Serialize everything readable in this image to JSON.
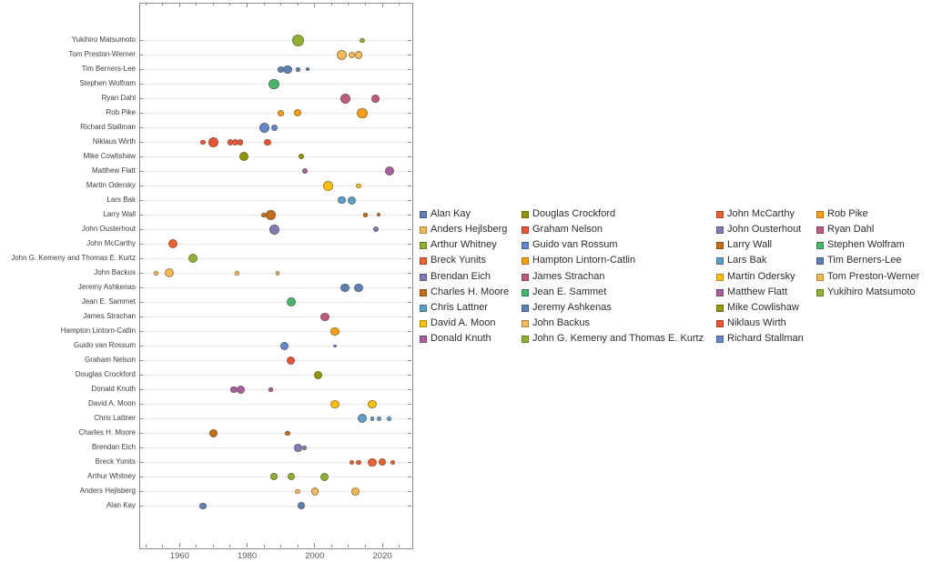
{
  "chart_data": {
    "type": "scatter",
    "subtype": "bubble-timeline",
    "title": "",
    "xlabel": "",
    "ylabel": "",
    "grid": "horizontal-only",
    "legend_position": "right-of-plot",
    "x_axis": {
      "major_ticks": [
        1960,
        1980,
        2000,
        2020
      ],
      "minor_tick_step_years": 5,
      "visible_year_range": [
        1948,
        2029
      ]
    },
    "bubble_format": "[year, radius_px]",
    "series": [
      {
        "name": "Yukihiro Matsumoto",
        "color": "#8fb032",
        "bubbles": [
          [
            1995,
            6.7
          ],
          [
            2014,
            2.8
          ]
        ]
      },
      {
        "name": "Tom Preston-Werner",
        "color": "#f3ba5a",
        "bubbles": [
          [
            2008,
            5.8
          ],
          [
            2011,
            3.5
          ],
          [
            2013,
            4.3
          ]
        ]
      },
      {
        "name": "Tim Berners-Lee",
        "color": "#5e81b5",
        "bubbles": [
          [
            1990,
            3.3
          ],
          [
            1992,
            4.7
          ],
          [
            1995,
            2.3
          ],
          [
            1998,
            1.9
          ]
        ]
      },
      {
        "name": "Stephen Wolfram",
        "color": "#47b66d",
        "bubbles": [
          [
            1988,
            5.8
          ]
        ]
      },
      {
        "name": "Ryan Dahl",
        "color": "#bc5b80",
        "bubbles": [
          [
            2009,
            5.5
          ],
          [
            2018,
            4.3
          ]
        ]
      },
      {
        "name": "Rob Pike",
        "color": "#f89f13",
        "bubbles": [
          [
            1990,
            3.3
          ],
          [
            1995,
            4.2
          ],
          [
            2014,
            5.8
          ]
        ]
      },
      {
        "name": "Richard Stallman",
        "color": "#6487cd",
        "bubbles": [
          [
            1985,
            5.5
          ],
          [
            1988,
            3.7
          ]
        ]
      },
      {
        "name": "Niklaus Wirth",
        "color": "#e95536",
        "bubbles": [
          [
            1967,
            2.8
          ],
          [
            1970,
            5.3
          ],
          [
            1975,
            3.3
          ],
          [
            1976.5,
            3.3
          ],
          [
            1978,
            3.3
          ],
          [
            1986,
            3.7
          ]
        ]
      },
      {
        "name": "Mike Cowlishaw",
        "color": "#929600",
        "bubbles": [
          [
            1979,
            5.2
          ],
          [
            1996,
            3.0
          ]
        ]
      },
      {
        "name": "Matthew Flatt",
        "color": "#a5609d",
        "bubbles": [
          [
            1997,
            3.0
          ],
          [
            2022,
            5.0
          ]
        ]
      },
      {
        "name": "Martin Odersky",
        "color": "#fdbf10",
        "bubbles": [
          [
            2004,
            5.3
          ],
          [
            2013,
            2.8
          ]
        ]
      },
      {
        "name": "Lars Bak",
        "color": "#5d9ec7",
        "bubbles": [
          [
            2008,
            4.2
          ],
          [
            2011,
            4.5
          ]
        ]
      },
      {
        "name": "Larry Wall",
        "color": "#c56e1a",
        "bubbles": [
          [
            1985,
            2.8
          ],
          [
            1987,
            5.3
          ],
          [
            2015,
            2.3
          ],
          [
            2019,
            2.0
          ]
        ]
      },
      {
        "name": "John Ousterhout",
        "color": "#8778b3",
        "bubbles": [
          [
            1988,
            5.3
          ],
          [
            2018,
            3.0
          ]
        ]
      },
      {
        "name": "John McCarthy",
        "color": "#eb6235",
        "bubbles": [
          [
            1958,
            5.2
          ]
        ]
      },
      {
        "name": "John G. Kemeny and Thomas E. Kurtz",
        "color": "#8fb032",
        "bubbles": [
          [
            1964,
            5.2
          ]
        ]
      },
      {
        "name": "John Backus",
        "color": "#f3ba5a",
        "bubbles": [
          [
            1953,
            2.3
          ],
          [
            1957,
            5.0
          ],
          [
            1977,
            2.3
          ],
          [
            1989,
            2.3
          ]
        ]
      },
      {
        "name": "Jeremy Ashkenas",
        "color": "#5e81b5",
        "bubbles": [
          [
            2009,
            4.8
          ],
          [
            2013,
            4.8
          ]
        ]
      },
      {
        "name": "Jean E. Sammet",
        "color": "#47b66d",
        "bubbles": [
          [
            1993,
            5.0
          ]
        ]
      },
      {
        "name": "James Strachan",
        "color": "#bc5b80",
        "bubbles": [
          [
            2003,
            4.8
          ]
        ]
      },
      {
        "name": "Hampton Lintorn-Catlin",
        "color": "#f89f13",
        "bubbles": [
          [
            2006,
            4.8
          ]
        ]
      },
      {
        "name": "Guido van Rossum",
        "color": "#6487cd",
        "bubbles": [
          [
            1991,
            4.8
          ],
          [
            2006,
            1.8
          ]
        ]
      },
      {
        "name": "Graham Nelson",
        "color": "#e95536",
        "bubbles": [
          [
            1993,
            4.5
          ]
        ]
      },
      {
        "name": "Douglas Crockford",
        "color": "#929600",
        "bubbles": [
          [
            2001,
            4.8
          ]
        ]
      },
      {
        "name": "Donald Knuth",
        "color": "#a5609d",
        "bubbles": [
          [
            1976,
            3.8
          ],
          [
            1978,
            4.5
          ],
          [
            1987,
            2.3
          ]
        ]
      },
      {
        "name": "David A. Moon",
        "color": "#fdbf10",
        "bubbles": [
          [
            2006,
            4.8
          ],
          [
            2017,
            4.8
          ]
        ]
      },
      {
        "name": "Chris Lattner",
        "color": "#5d9ec7",
        "bubbles": [
          [
            2014,
            5.2
          ],
          [
            2017,
            2.3
          ],
          [
            2019,
            2.7
          ],
          [
            2022,
            2.7
          ]
        ]
      },
      {
        "name": "Charles H. Moore",
        "color": "#c56e1a",
        "bubbles": [
          [
            1970,
            4.8
          ],
          [
            1992,
            2.7
          ]
        ]
      },
      {
        "name": "Brendan Eich",
        "color": "#8778b3",
        "bubbles": [
          [
            1995,
            4.3
          ],
          [
            1997,
            2.3
          ]
        ]
      },
      {
        "name": "Breck Yunits",
        "color": "#eb6235",
        "bubbles": [
          [
            2011,
            2.7
          ],
          [
            2013,
            2.7
          ],
          [
            2017,
            4.7
          ],
          [
            2020,
            4.2
          ],
          [
            2023,
            2.7
          ]
        ]
      },
      {
        "name": "Arthur Whitney",
        "color": "#8fb032",
        "bubbles": [
          [
            1988,
            4.2
          ],
          [
            1993,
            4.2
          ],
          [
            2003,
            4.5
          ]
        ]
      },
      {
        "name": "Anders Hejlsberg",
        "color": "#f3ba5a",
        "bubbles": [
          [
            1995,
            2.8
          ],
          [
            2000,
            4.3
          ],
          [
            2012,
            4.3
          ]
        ]
      },
      {
        "name": "Alan Kay",
        "color": "#5e81b5",
        "bubbles": [
          [
            1967,
            3.8
          ],
          [
            1996,
            4.2
          ]
        ]
      }
    ],
    "legend": {
      "columns": [
        [
          {
            "label": "Alan Kay",
            "color": "#5e81b5"
          },
          {
            "label": "Anders Hejlsberg",
            "color": "#f3ba5a"
          },
          {
            "label": "Arthur Whitney",
            "color": "#8fb032"
          },
          {
            "label": "Breck Yunits",
            "color": "#eb6235"
          },
          {
            "label": "Brendan Eich",
            "color": "#8778b3"
          },
          {
            "label": "Charles H. Moore",
            "color": "#c56e1a"
          },
          {
            "label": "Chris Lattner",
            "color": "#5d9ec7"
          },
          {
            "label": "David A. Moon",
            "color": "#fdbf10"
          },
          {
            "label": "Donald Knuth",
            "color": "#a5609d"
          }
        ],
        [
          {
            "label": "Douglas Crockford",
            "color": "#929600"
          },
          {
            "label": "Graham Nelson",
            "color": "#e95536"
          },
          {
            "label": "Guido van Rossum",
            "color": "#6487cd"
          },
          {
            "label": "Hampton Lintorn-Catlin",
            "color": "#f89f13"
          },
          {
            "label": "James Strachan",
            "color": "#bc5b80"
          },
          {
            "label": "Jean E. Sammet",
            "color": "#47b66d"
          },
          {
            "label": "Jeremy Ashkenas",
            "color": "#5e81b5"
          },
          {
            "label": "John Backus",
            "color": "#f3ba5a"
          },
          {
            "label": "John G. Kemeny and Thomas E. Kurtz",
            "color": "#8fb032"
          }
        ],
        [
          {
            "label": "John McCarthy",
            "color": "#eb6235"
          },
          {
            "label": "John Ousterhout",
            "color": "#8778b3"
          },
          {
            "label": "Larry Wall",
            "color": "#c56e1a"
          },
          {
            "label": "Lars Bak",
            "color": "#5d9ec7"
          },
          {
            "label": "Martin Odersky",
            "color": "#fdbf10"
          },
          {
            "label": "Matthew Flatt",
            "color": "#a5609d"
          },
          {
            "label": "Mike Cowlishaw",
            "color": "#929600"
          },
          {
            "label": "Niklaus Wirth",
            "color": "#e95536"
          },
          {
            "label": "Richard Stallman",
            "color": "#6487cd"
          }
        ],
        [
          {
            "label": "Rob Pike",
            "color": "#f89f13"
          },
          {
            "label": "Ryan Dahl",
            "color": "#bc5b80"
          },
          {
            "label": "Stephen Wolfram",
            "color": "#47b66d"
          },
          {
            "label": "Tim Berners-Lee",
            "color": "#5e81b5"
          },
          {
            "label": "Tom Preston-Werner",
            "color": "#f3ba5a"
          },
          {
            "label": "Yukihiro Matsumoto",
            "color": "#8fb032"
          }
        ]
      ]
    }
  }
}
